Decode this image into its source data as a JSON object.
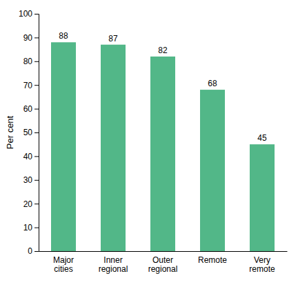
{
  "chart_data": {
    "type": "bar",
    "categories": [
      "Major\ncities",
      "Inner\nregional",
      "Outer\nregional",
      "Remote",
      "Very\nremote"
    ],
    "values": [
      88,
      87,
      82,
      68,
      45
    ],
    "color": "#52b788",
    "ylabel": "Per cent",
    "ylim": [
      0,
      100
    ],
    "yticks": [
      0,
      10,
      20,
      30,
      40,
      50,
      60,
      70,
      80,
      90,
      100
    ],
    "grid": false,
    "data_labels": true
  }
}
